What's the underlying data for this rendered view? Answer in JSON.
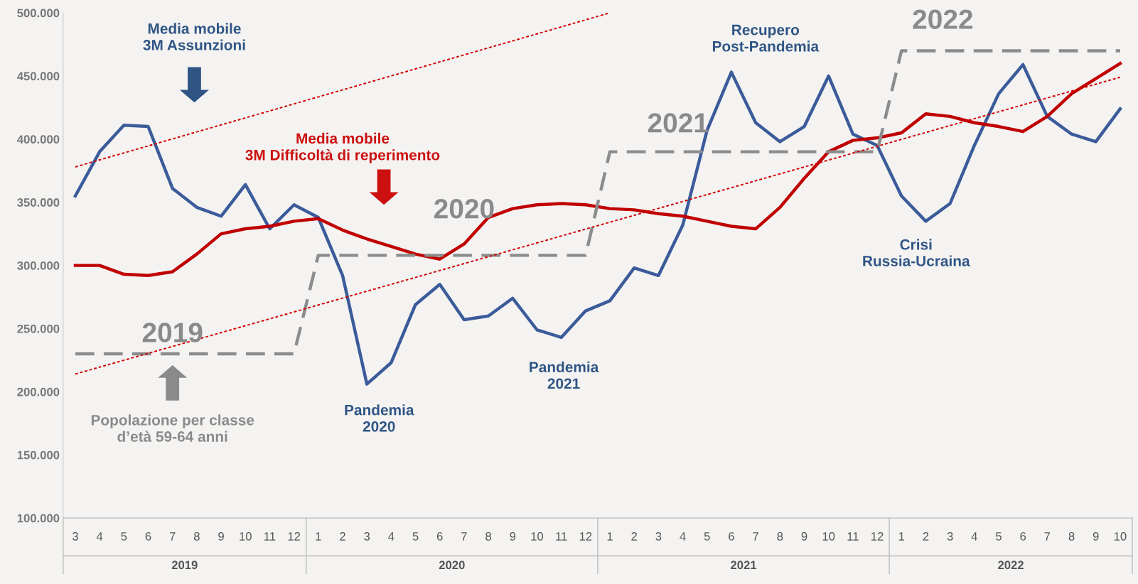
{
  "chart_data": {
    "type": "line",
    "categories": [
      "3",
      "4",
      "5",
      "6",
      "7",
      "8",
      "9",
      "10",
      "11",
      "12",
      "1",
      "2",
      "3",
      "4",
      "5",
      "6",
      "7",
      "8",
      "9",
      "10",
      "11",
      "12",
      "1",
      "2",
      "3",
      "4",
      "5",
      "6",
      "7",
      "8",
      "9",
      "10",
      "11",
      "12",
      "1",
      "2",
      "3",
      "4",
      "5",
      "6",
      "7",
      "8",
      "9",
      "10"
    ],
    "series": [
      {
        "color": "#3b5b9a",
        "line_style": "solid",
        "values": [
          355000,
          390000,
          411000,
          410000,
          361000,
          346000,
          339000,
          364000,
          329000,
          348000,
          338000,
          292000,
          206000,
          223000,
          269000,
          285000,
          257000,
          260000,
          274000,
          249000,
          243000,
          264000,
          272000,
          298000,
          292000,
          332000,
          407000,
          453000,
          413000,
          398000,
          410000,
          450000,
          404000,
          395000,
          355000,
          335000,
          349000,
          395000,
          436000,
          459000,
          418000,
          404000,
          398000,
          424000
        ]
      },
      {
        "color": "#c00000",
        "line_style": "solid",
        "values": [
          300000,
          300000,
          293000,
          292000,
          295000,
          309000,
          325000,
          329000,
          331000,
          335000,
          337000,
          328000,
          321000,
          315000,
          309000,
          305000,
          317000,
          338000,
          345000,
          348000,
          349000,
          348000,
          345000,
          344000,
          341000,
          339000,
          335000,
          331000,
          329000,
          346000,
          369000,
          390000,
          399000,
          401000,
          405000,
          420000,
          418000,
          413000,
          410000,
          406000,
          418000,
          436000,
          448000,
          460000
        ]
      },
      {
        "color": "#8c8c8c",
        "line_style": "dashed",
        "values": [
          230000,
          230000,
          230000,
          230000,
          230000,
          230000,
          230000,
          230000,
          230000,
          230000,
          308000,
          308000,
          308000,
          308000,
          308000,
          308000,
          308000,
          308000,
          308000,
          308000,
          308000,
          308000,
          390000,
          390000,
          390000,
          390000,
          390000,
          390000,
          390000,
          390000,
          390000,
          390000,
          390000,
          390000,
          470000,
          470000,
          470000,
          470000,
          470000,
          470000,
          470000,
          470000,
          470000,
          470000
        ]
      },
      {
        "type": "line",
        "color": "#d00000",
        "line_style": "dotted",
        "values": [
          378000,
          null,
          null,
          null,
          null,
          null,
          null,
          null,
          null,
          null,
          null,
          null,
          null,
          null,
          null,
          null,
          null,
          null,
          null,
          null,
          null,
          null,
          500000,
          null,
          null,
          null,
          null,
          null,
          null,
          null,
          null,
          null,
          null,
          null,
          null,
          null,
          null,
          null,
          null,
          null,
          null,
          null,
          null,
          null
        ]
      },
      {
        "type": "line",
        "color": "#d00000",
        "line_style": "dotted",
        "values": [
          214000,
          null,
          null,
          null,
          null,
          null,
          null,
          null,
          null,
          null,
          null,
          null,
          null,
          null,
          null,
          null,
          null,
          null,
          null,
          null,
          null,
          null,
          null,
          null,
          null,
          null,
          null,
          null,
          null,
          null,
          null,
          null,
          null,
          null,
          null,
          null,
          null,
          null,
          null,
          null,
          null,
          null,
          null,
          449000
        ]
      }
    ],
    "ylim": [
      100000,
      500000
    ],
    "yticks": [
      {
        "value": 100000,
        "label": "100.000"
      },
      {
        "value": 150000,
        "label": "150.000"
      },
      {
        "value": 200000,
        "label": "200.000"
      },
      {
        "value": 250000,
        "label": "250.000"
      },
      {
        "value": 300000,
        "label": "300.000"
      },
      {
        "value": 350000,
        "label": "350.000"
      },
      {
        "value": 400000,
        "label": "400.000"
      },
      {
        "value": 450000,
        "label": "450.000"
      },
      {
        "value": 500000,
        "label": "500.000"
      }
    ],
    "grid": false,
    "legend": false,
    "annotations": [
      "Media mobile\n3M Assunzioni",
      "Media mobile\n3M Difficoltà di reperimento",
      "Popolazione per classe\nd’età 59-64 anni",
      "Pandemia\n2020",
      "Pandemia\n2021",
      "Recupero\nPost-Pandemia",
      "Crisi\nRussia-Ucraina",
      "2019",
      "2020",
      "2021",
      "2022",
      "2019",
      "2020",
      "2021",
      "2022"
    ]
  }
}
